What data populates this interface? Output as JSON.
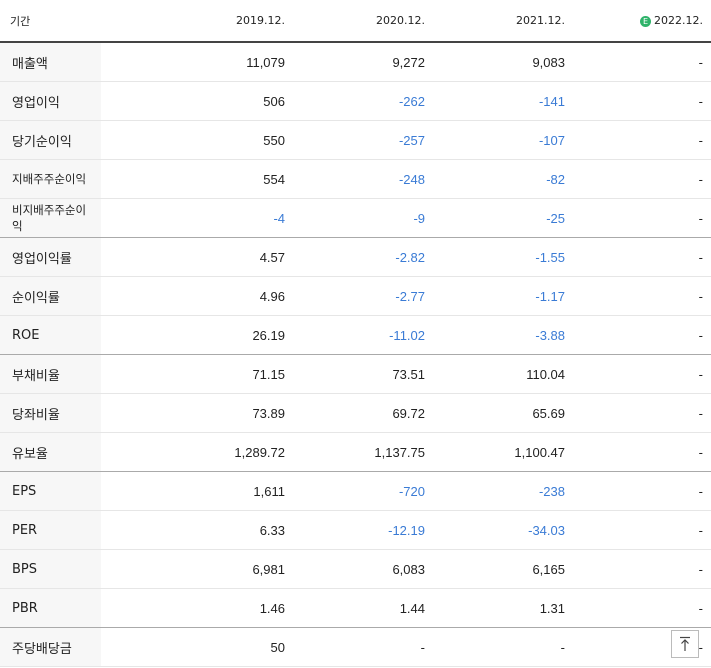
{
  "header": {
    "period_label": "기간",
    "col1": "2019.12.",
    "col2": "2020.12.",
    "col3": "2021.12.",
    "col4": "2022.12.",
    "estimate_mark": "E"
  },
  "rows": [
    {
      "label": "매출액",
      "v1": "11,079",
      "v2": "9,272",
      "v3": "9,083",
      "v4": "-"
    },
    {
      "label": "영업이익",
      "v1": "506",
      "v2": "-262",
      "v3": "-141",
      "v4": "-"
    },
    {
      "label": "당기순이익",
      "v1": "550",
      "v2": "-257",
      "v3": "-107",
      "v4": "-"
    },
    {
      "label": "지배주주순이익",
      "v1": "554",
      "v2": "-248",
      "v3": "-82",
      "v4": "-"
    },
    {
      "label": "비지배주주순이익",
      "v1": "-4",
      "v2": "-9",
      "v3": "-25",
      "v4": "-"
    },
    {
      "label": "영업이익률",
      "v1": "4.57",
      "v2": "-2.82",
      "v3": "-1.55",
      "v4": "-"
    },
    {
      "label": "순이익률",
      "v1": "4.96",
      "v2": "-2.77",
      "v3": "-1.17",
      "v4": "-"
    },
    {
      "label": "ROE",
      "v1": "26.19",
      "v2": "-11.02",
      "v3": "-3.88",
      "v4": "-"
    },
    {
      "label": "부채비율",
      "v1": "71.15",
      "v2": "73.51",
      "v3": "110.04",
      "v4": "-"
    },
    {
      "label": "당좌비율",
      "v1": "73.89",
      "v2": "69.72",
      "v3": "65.69",
      "v4": "-"
    },
    {
      "label": "유보율",
      "v1": "1,289.72",
      "v2": "1,137.75",
      "v3": "1,100.47",
      "v4": "-"
    },
    {
      "label": "EPS",
      "v1": "1,611",
      "v2": "-720",
      "v3": "-238",
      "v4": "-"
    },
    {
      "label": "PER",
      "v1": "6.33",
      "v2": "-12.19",
      "v3": "-34.03",
      "v4": "-"
    },
    {
      "label": "BPS",
      "v1": "6,981",
      "v2": "6,083",
      "v3": "6,165",
      "v4": "-"
    },
    {
      "label": "PBR",
      "v1": "1.46",
      "v2": "1.44",
      "v3": "1.31",
      "v4": "-"
    },
    {
      "label": "주당배당금",
      "v1": "50",
      "v2": "-",
      "v3": "-",
      "v4": "-"
    }
  ],
  "scroll_top": {
    "icon": "arrow-up-to-top-icon"
  },
  "colors": {
    "negative": "#3a7bd5"
  }
}
